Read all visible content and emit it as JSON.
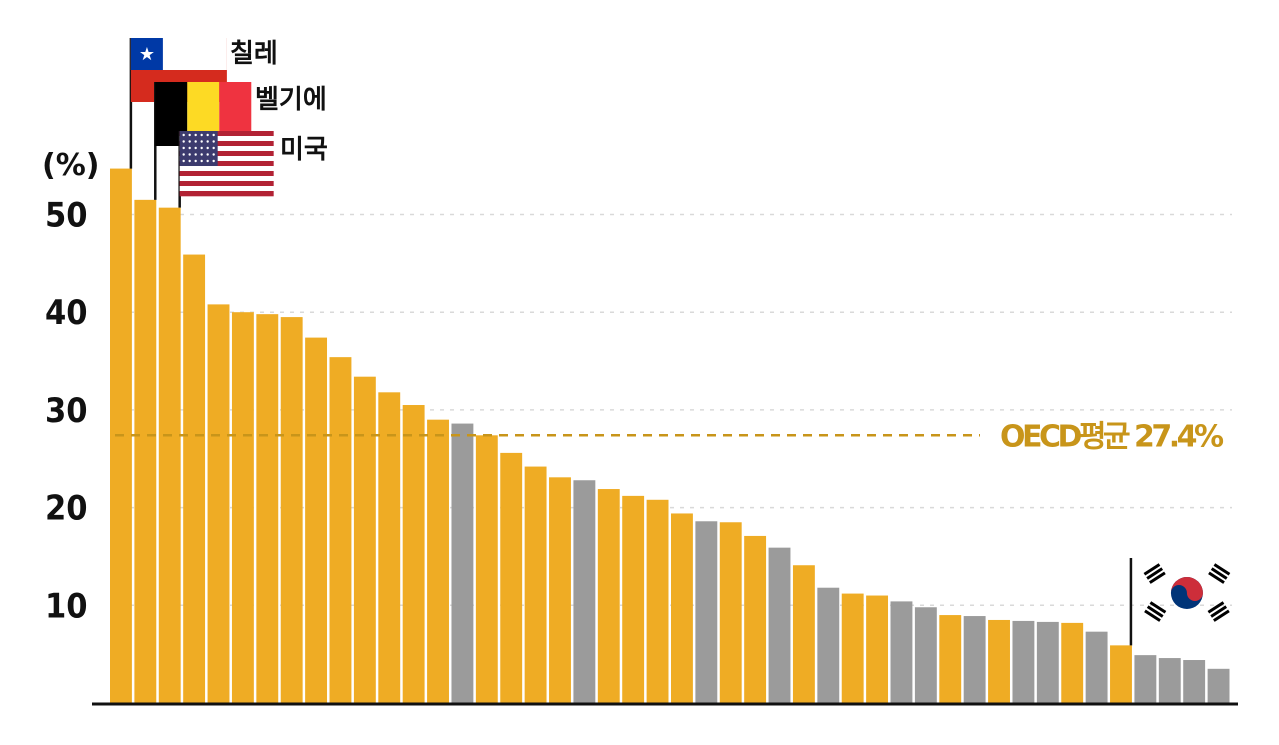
{
  "chart_data": {
    "type": "bar",
    "y_unit_label": "(%)",
    "ylim": [
      0,
      55
    ],
    "yticks": [
      10,
      20,
      30,
      40,
      50
    ],
    "grid": true,
    "values": [
      54.7,
      51.5,
      50.7,
      45.9,
      40.8,
      40.0,
      39.8,
      39.5,
      37.4,
      35.4,
      33.4,
      31.8,
      30.5,
      29.0,
      28.6,
      27.4,
      25.6,
      24.2,
      23.1,
      22.8,
      21.9,
      21.2,
      20.8,
      19.4,
      18.6,
      18.5,
      17.1,
      15.9,
      14.1,
      11.8,
      11.2,
      11.0,
      10.4,
      9.8,
      9.0,
      8.9,
      8.5,
      8.4,
      8.3,
      8.2,
      7.3,
      5.9,
      4.9,
      4.6,
      4.4,
      3.5
    ],
    "bar_colors": [
      "orange",
      "orange",
      "orange",
      "orange",
      "orange",
      "orange",
      "orange",
      "orange",
      "orange",
      "orange",
      "orange",
      "orange",
      "orange",
      "orange",
      "gray",
      "orange",
      "orange",
      "orange",
      "orange",
      "gray",
      "orange",
      "orange",
      "orange",
      "orange",
      "gray",
      "orange",
      "orange",
      "gray",
      "orange",
      "gray",
      "orange",
      "orange",
      "gray",
      "gray",
      "orange",
      "gray",
      "orange",
      "gray",
      "gray",
      "orange",
      "gray",
      "orange",
      "gray",
      "gray",
      "gray",
      "gray"
    ],
    "colors": {
      "orange": "#efac24",
      "gray": "#9b9b9b",
      "average": "#c8951a",
      "axis": "#111111",
      "grid": "#d9d9d9"
    },
    "average": {
      "value": 27.4,
      "label": "OECD평균 27.4%"
    },
    "highlighted": [
      {
        "label": "칠레",
        "bar_index": 0,
        "flag": "chile-flag"
      },
      {
        "label": "벨기에",
        "bar_index": 1,
        "flag": "belgium-flag"
      },
      {
        "label": "미국",
        "bar_index": 2,
        "flag": "usa-flag"
      },
      {
        "label": "",
        "bar_index": 41,
        "flag": "korea-flag"
      }
    ]
  }
}
